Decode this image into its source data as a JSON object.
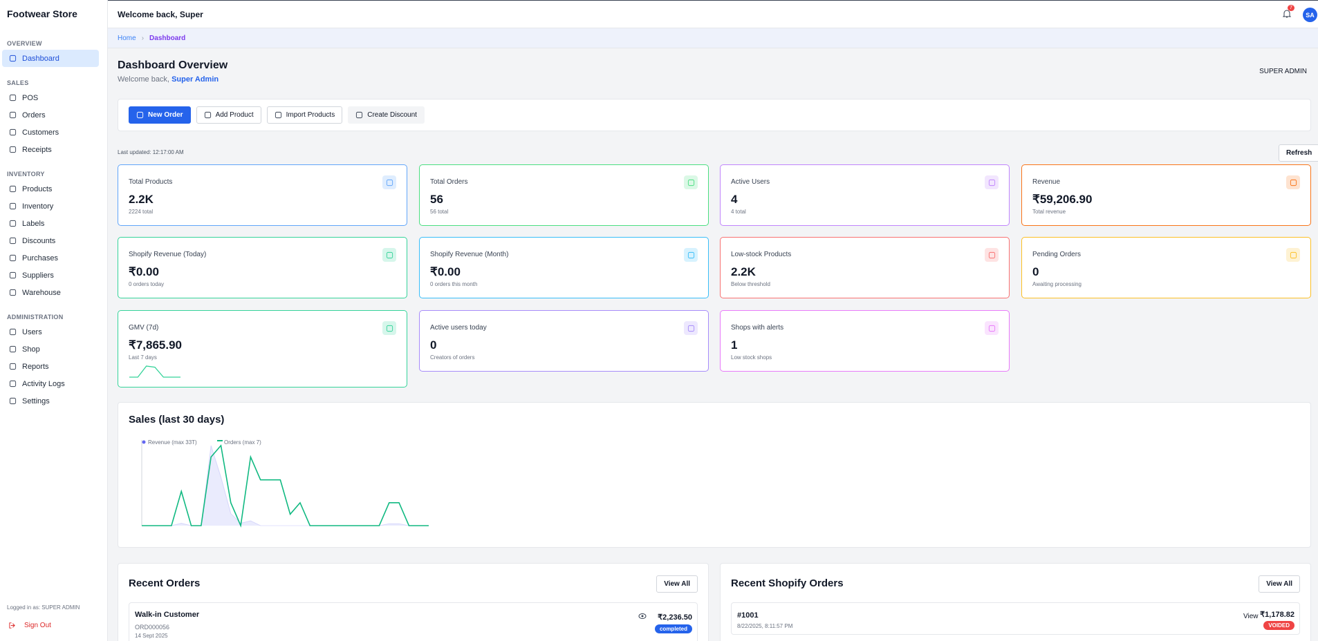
{
  "sidebar": {
    "brand": "Footwear Store",
    "sections": [
      {
        "title": "OVERVIEW",
        "items": [
          "Dashboard"
        ]
      },
      {
        "title": "SALES",
        "items": [
          "POS",
          "Orders",
          "Customers",
          "Receipts"
        ]
      },
      {
        "title": "INVENTORY",
        "items": [
          "Products",
          "Inventory",
          "Labels",
          "Discounts",
          "Purchases",
          "Suppliers",
          "Warehouse"
        ]
      },
      {
        "title": "ADMINISTRATION",
        "items": [
          "Users",
          "Shop",
          "Reports",
          "Activity Logs",
          "Settings"
        ]
      }
    ],
    "active": "Dashboard",
    "logged_in": "Logged in as: SUPER ADMIN",
    "sign_out": "Sign Out"
  },
  "header": {
    "welcome": "Welcome back, Super",
    "notifications": "7",
    "avatar": "SA"
  },
  "breadcrumb": [
    "Home",
    "Dashboard"
  ],
  "page": {
    "title": "Dashboard Overview",
    "subtitle": "Welcome back,",
    "user": "Super Admin",
    "role": "SUPER ADMIN"
  },
  "actions": [
    "New Order",
    "Add Product",
    "Import Products",
    "Create Discount"
  ],
  "last_updated": "Last updated: 12:17:00 AM",
  "refresh": "Refresh",
  "stats": [
    {
      "label": "Total Products",
      "value": "2.2K",
      "note": "2224 total",
      "color": "#60a5fa"
    },
    {
      "label": "Total Orders",
      "value": "56",
      "note": "56 total",
      "color": "#4ade80"
    },
    {
      "label": "Active Users",
      "value": "4",
      "note": "4 total",
      "color": "#c084fc"
    },
    {
      "label": "Revenue",
      "value": "₹59,206.90",
      "note": "Total revenue",
      "color": "#f97316"
    },
    {
      "label": "Shopify Revenue (Today)",
      "value": "₹0.00",
      "note": "0 orders today",
      "color": "#34d399"
    },
    {
      "label": "Shopify Revenue (Month)",
      "value": "₹0.00",
      "note": "0 orders this month",
      "color": "#38bdf8"
    },
    {
      "label": "Low-stock Products",
      "value": "2.2K",
      "note": "Below threshold",
      "color": "#f87171"
    },
    {
      "label": "Pending Orders",
      "value": "0",
      "note": "Awaiting processing",
      "color": "#fbbf24"
    },
    {
      "label": "GMV (7d)",
      "value": "₹7,865.90",
      "note": "Last 7 days",
      "color": "#34d399",
      "sparkline": [
        0,
        0,
        2,
        1.8,
        0,
        0,
        0
      ]
    },
    {
      "label": "Active users today",
      "value": "0",
      "note": "Creators of orders",
      "color": "#a78bfa"
    },
    {
      "label": "Shops with alerts",
      "value": "1",
      "note": "Low stock shops",
      "color": "#e879f9"
    }
  ],
  "sales_chart": {
    "type": "line",
    "title": "Sales (last 30 days)",
    "ylim": [
      0,
      7
    ],
    "y2lim": [
      0,
      33000
    ],
    "series": [
      {
        "name": "Revenue (max 33T)",
        "color": "#6366f1",
        "axis": "y2",
        "values": [
          0,
          0,
          0,
          0,
          1000,
          0,
          0,
          33000,
          20000,
          5000,
          1000,
          2000,
          0,
          0,
          0,
          0,
          0,
          0,
          0,
          0,
          0,
          0,
          0,
          0,
          0,
          800,
          800,
          0,
          0,
          0
        ]
      },
      {
        "name": "Orders (max 7)",
        "color": "#10b981",
        "values": [
          0,
          0,
          0,
          0,
          3,
          0,
          0,
          6,
          7,
          2,
          0,
          6,
          4,
          4,
          4,
          1,
          2,
          0,
          0,
          0,
          0,
          0,
          0,
          0,
          0,
          2,
          2,
          0,
          0,
          0
        ]
      }
    ]
  },
  "recent_orders": {
    "title": "Recent Orders",
    "view_all": "View All",
    "orders": [
      {
        "customer": "Walk-in Customer",
        "id": "ORD000056",
        "date": "14 Sept 2025",
        "total": "₹2,236.50",
        "status": "completed"
      }
    ]
  },
  "shopify_orders": {
    "title": "Recent Shopify Orders",
    "view_all": "View All",
    "orders": [
      {
        "id": "#1001",
        "date": "8/22/2025, 8:11:57 PM",
        "action": "View",
        "total": "₹1,178.82",
        "status": "VOIDED"
      }
    ]
  }
}
